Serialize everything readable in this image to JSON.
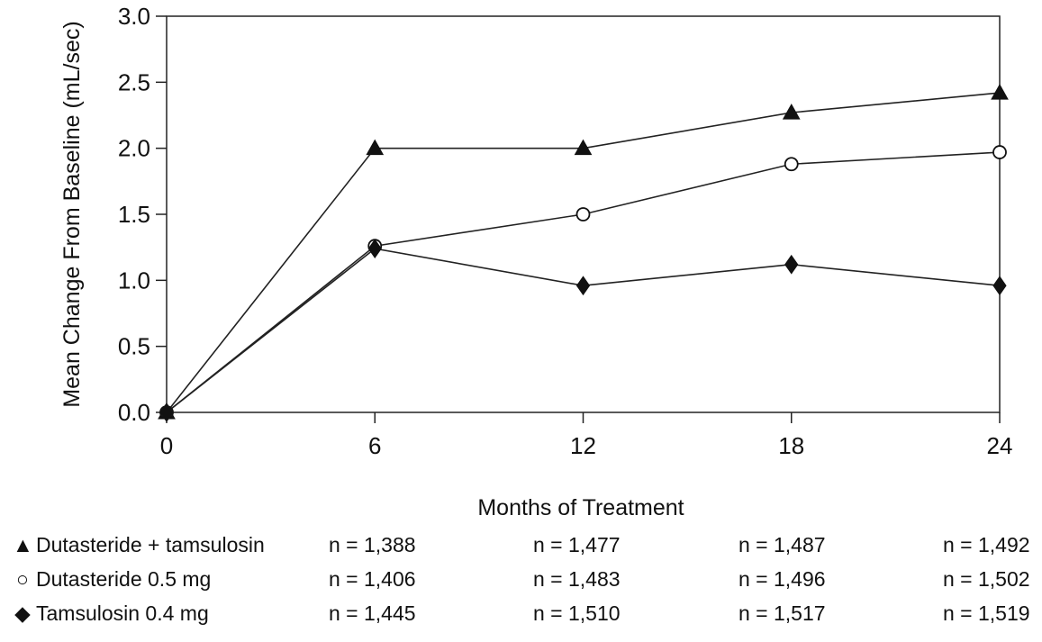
{
  "chart_data": {
    "type": "line",
    "x": [
      0,
      6,
      12,
      18,
      24
    ],
    "xlabel": "Months of Treatment",
    "ylabel": "Mean Change From Baseline (mL/sec)",
    "xlim": [
      0,
      24
    ],
    "ylim": [
      0,
      3
    ],
    "xticks": [
      "0",
      "6",
      "12",
      "18",
      "24"
    ],
    "yticks": [
      "0.0",
      "0.5",
      "1.0",
      "1.5",
      "2.0",
      "2.5",
      "3.0"
    ],
    "grid": false,
    "series": [
      {
        "name": "Dutasteride + tamsulosin",
        "marker": "filled-triangle",
        "values": [
          0.0,
          2.0,
          2.0,
          2.27,
          2.42
        ],
        "n": [
          "n = 1,388",
          "n = 1,477",
          "n = 1,487",
          "n = 1,492"
        ]
      },
      {
        "name": "Dutasteride 0.5 mg",
        "marker": "open-circle",
        "values": [
          0.0,
          1.26,
          1.5,
          1.88,
          1.97
        ],
        "n": [
          "n = 1,406",
          "n = 1,483",
          "n = 1,496",
          "n = 1,502"
        ]
      },
      {
        "name": "Tamsulosin 0.4 mg",
        "marker": "filled-diamond",
        "values": [
          0.0,
          1.24,
          0.96,
          1.12,
          0.96
        ],
        "n": [
          "n = 1,445",
          "n = 1,510",
          "n = 1,517",
          "n = 1,519"
        ]
      }
    ]
  }
}
